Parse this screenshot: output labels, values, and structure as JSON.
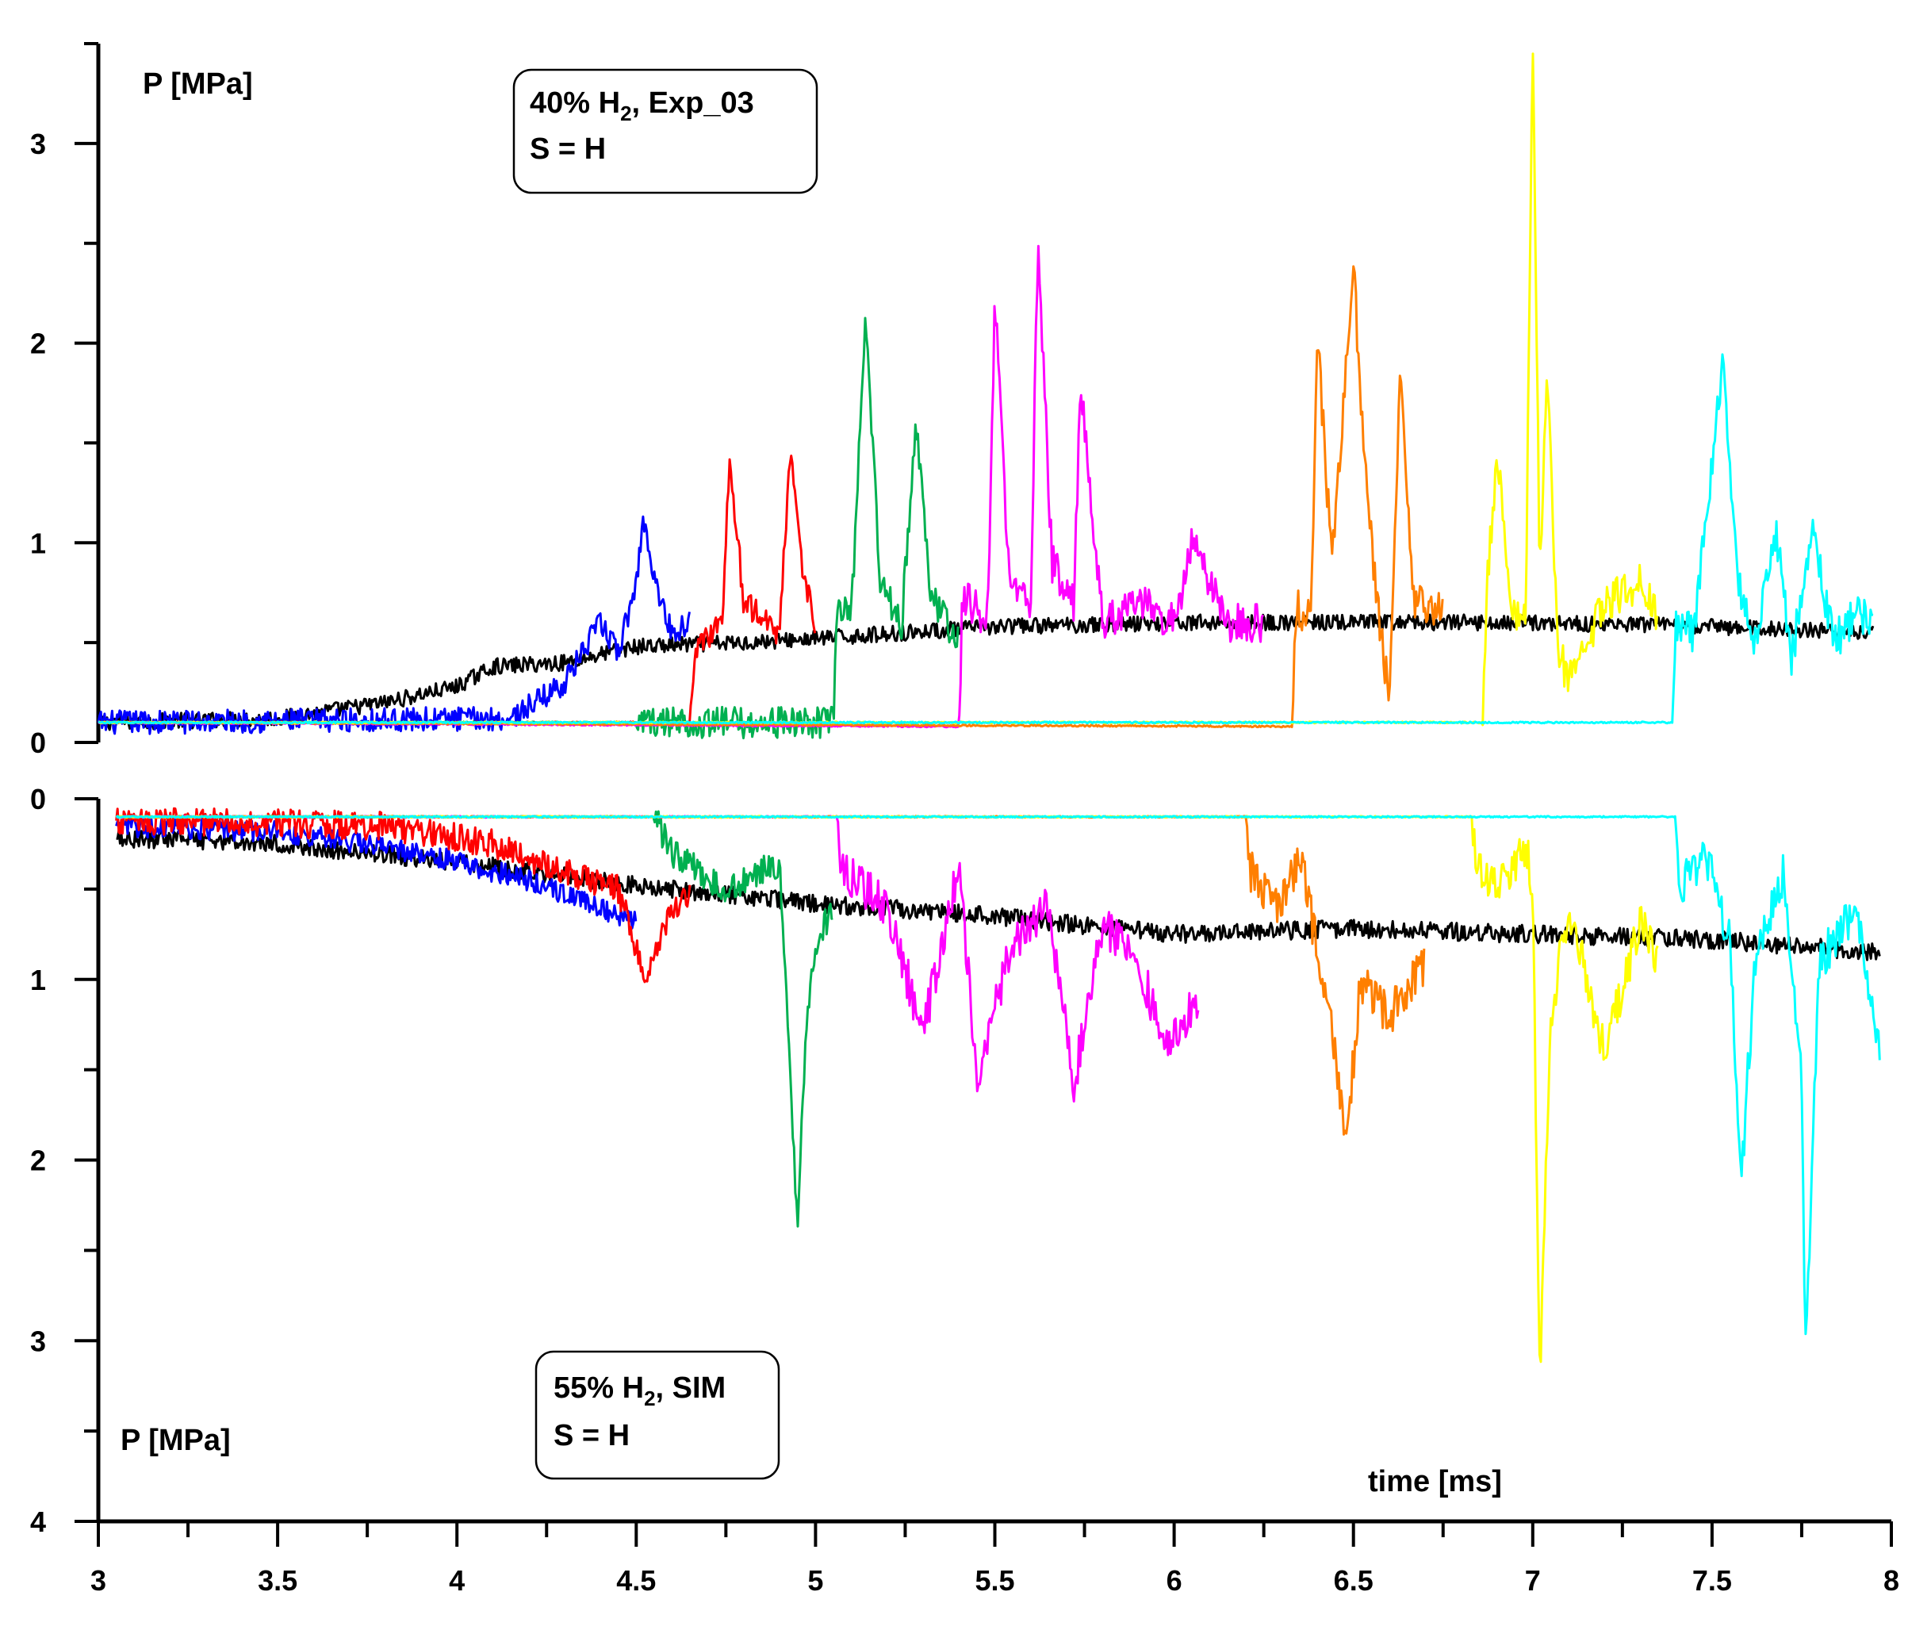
{
  "chart_data": [
    {
      "panel": "top",
      "type": "line",
      "title": "",
      "ylabel": "P [MPa]",
      "xlabel": "",
      "xlim": [
        3,
        8
      ],
      "ylim": [
        0,
        3.5
      ],
      "y_orientation": "normal",
      "y_ticks": [
        0,
        1,
        2,
        3
      ],
      "y_minor_ticks": [
        0.5,
        1.5,
        2.5,
        3.5
      ],
      "legend_box": {
        "line1_prefix": "40% H",
        "line1_sub": "2",
        "line1_suffix": ", Exp_03",
        "line2": "S = H"
      },
      "series": [
        {
          "name": "black",
          "color": "#000000",
          "baseline": 0.1,
          "start": 3.0,
          "end": 7.95,
          "points": [
            [
              3.0,
              0.1
            ],
            [
              3.5,
              0.12
            ],
            [
              3.8,
              0.2
            ],
            [
              4.0,
              0.28
            ],
            [
              4.1,
              0.38
            ],
            [
              4.3,
              0.4
            ],
            [
              4.5,
              0.48
            ],
            [
              4.8,
              0.5
            ],
            [
              5.0,
              0.52
            ],
            [
              5.5,
              0.58
            ],
            [
              6.0,
              0.6
            ],
            [
              6.5,
              0.6
            ],
            [
              7.0,
              0.6
            ],
            [
              7.5,
              0.58
            ],
            [
              7.95,
              0.55
            ]
          ],
          "noise": 0.04
        },
        {
          "name": "blue",
          "color": "#0000ff",
          "baseline": 0.1,
          "start": 3.0,
          "end": 4.65,
          "points": [
            [
              3.0,
              0.1
            ],
            [
              4.15,
              0.12
            ],
            [
              4.3,
              0.3
            ],
            [
              4.4,
              0.6
            ],
            [
              4.45,
              0.45
            ],
            [
              4.5,
              0.8
            ],
            [
              4.52,
              1.12
            ],
            [
              4.56,
              0.75
            ],
            [
              4.6,
              0.55
            ],
            [
              4.65,
              0.6
            ]
          ],
          "noise": 0.06
        },
        {
          "name": "red",
          "color": "#ff0000",
          "baseline": 0.1,
          "start": 3.0,
          "end": 5.0,
          "points": [
            [
              3.0,
              0.1
            ],
            [
              4.65,
              0.1
            ],
            [
              4.67,
              0.5
            ],
            [
              4.74,
              0.6
            ],
            [
              4.76,
              1.42
            ],
            [
              4.8,
              0.7
            ],
            [
              4.9,
              0.55
            ],
            [
              4.93,
              1.5
            ],
            [
              4.96,
              0.9
            ],
            [
              5.0,
              0.6
            ]
          ],
          "noise": 0.07
        },
        {
          "name": "green",
          "color": "#00b050",
          "baseline": 0.1,
          "start": 3.0,
          "end": 5.4,
          "points": [
            [
              3.0,
              0.1
            ],
            [
              4.5,
              0.1
            ],
            [
              5.05,
              0.1
            ],
            [
              5.06,
              0.7
            ],
            [
              5.1,
              0.65
            ],
            [
              5.14,
              2.12
            ],
            [
              5.18,
              0.8
            ],
            [
              5.24,
              0.6
            ],
            [
              5.28,
              1.6
            ],
            [
              5.32,
              0.75
            ],
            [
              5.38,
              0.55
            ]
          ],
          "noise": 0.08
        },
        {
          "name": "magenta",
          "color": "#ff00ff",
          "baseline": 0.08,
          "start": 3.0,
          "end": 6.25,
          "points": [
            [
              3.0,
              0.1
            ],
            [
              5.4,
              0.08
            ],
            [
              5.41,
              0.75
            ],
            [
              5.48,
              0.6
            ],
            [
              5.5,
              2.22
            ],
            [
              5.54,
              0.8
            ],
            [
              5.6,
              0.7
            ],
            [
              5.62,
              2.48
            ],
            [
              5.66,
              0.9
            ],
            [
              5.72,
              0.7
            ],
            [
              5.74,
              1.8
            ],
            [
              5.8,
              0.6
            ],
            [
              5.9,
              0.7
            ],
            [
              6.0,
              0.6
            ],
            [
              6.05,
              1.0
            ],
            [
              6.15,
              0.6
            ],
            [
              6.25,
              0.6
            ]
          ],
          "noise": 0.1
        },
        {
          "name": "orange",
          "color": "#ff7f00",
          "baseline": 0.08,
          "start": 3.0,
          "end": 6.75,
          "points": [
            [
              3.0,
              0.1
            ],
            [
              6.33,
              0.08
            ],
            [
              6.34,
              0.7
            ],
            [
              6.38,
              0.6
            ],
            [
              6.4,
              2.02
            ],
            [
              6.44,
              0.9
            ],
            [
              6.5,
              2.4
            ],
            [
              6.53,
              1.4
            ],
            [
              6.56,
              0.8
            ],
            [
              6.6,
              0.2
            ],
            [
              6.63,
              1.85
            ],
            [
              6.67,
              0.7
            ],
            [
              6.75,
              0.65
            ]
          ],
          "noise": 0.1
        },
        {
          "name": "yellow",
          "color": "#ffff00",
          "baseline": 0.1,
          "start": 3.0,
          "end": 7.35,
          "points": [
            [
              3.0,
              0.1
            ],
            [
              6.86,
              0.1
            ],
            [
              6.87,
              0.7
            ],
            [
              6.9,
              1.45
            ],
            [
              6.94,
              0.7
            ],
            [
              6.98,
              0.6
            ],
            [
              7.0,
              3.5
            ],
            [
              7.02,
              0.8
            ],
            [
              7.04,
              1.85
            ],
            [
              7.07,
              0.5
            ],
            [
              7.1,
              0.3
            ],
            [
              7.2,
              0.7
            ],
            [
              7.3,
              0.8
            ],
            [
              7.35,
              0.6
            ]
          ],
          "noise": 0.1
        },
        {
          "name": "cyan",
          "color": "#00ffff",
          "baseline": 0.1,
          "start": 3.0,
          "end": 7.95,
          "points": [
            [
              3.0,
              0.1
            ],
            [
              7.39,
              0.1
            ],
            [
              7.4,
              0.6
            ],
            [
              7.45,
              0.55
            ],
            [
              7.53,
              1.93
            ],
            [
              7.57,
              0.8
            ],
            [
              7.62,
              0.5
            ],
            [
              7.68,
              1.05
            ],
            [
              7.72,
              0.4
            ],
            [
              7.78,
              1.05
            ],
            [
              7.84,
              0.5
            ],
            [
              7.9,
              0.65
            ],
            [
              7.95,
              0.6
            ]
          ],
          "noise": 0.1
        }
      ]
    },
    {
      "panel": "bottom",
      "type": "line",
      "title": "",
      "ylabel": "P [MPa]",
      "xlabel": "time [ms]",
      "xlim": [
        3,
        8
      ],
      "ylim": [
        0,
        4
      ],
      "y_orientation": "inverted",
      "y_ticks": [
        0,
        1,
        2,
        3,
        4
      ],
      "y_minor_ticks": [
        0.5,
        1.5,
        2.5,
        3.5
      ],
      "x_ticks": [
        3,
        3.5,
        4,
        4.5,
        5,
        5.5,
        6,
        6.5,
        7,
        7.5,
        8
      ],
      "x_minor_ticks": [
        3.25,
        3.75,
        4.25,
        4.75,
        5.25,
        5.75,
        6.25,
        6.75,
        7.25,
        7.75
      ],
      "legend_box": {
        "line1_prefix": "55% H",
        "line1_sub": "2",
        "line1_suffix": ", SIM",
        "line2": "S = H"
      },
      "series": [
        {
          "name": "black",
          "color": "#000000",
          "baseline": 0.1,
          "start": 3.05,
          "end": 7.97,
          "points": [
            [
              3.05,
              0.22
            ],
            [
              3.5,
              0.25
            ],
            [
              4.0,
              0.35
            ],
            [
              4.5,
              0.48
            ],
            [
              5.0,
              0.58
            ],
            [
              5.5,
              0.65
            ],
            [
              6.0,
              0.75
            ],
            [
              6.5,
              0.72
            ],
            [
              7.0,
              0.75
            ],
            [
              7.5,
              0.78
            ],
            [
              7.97,
              0.85
            ]
          ],
          "noise": 0.05
        },
        {
          "name": "blue",
          "color": "#0000ff",
          "baseline": 0.1,
          "start": 3.05,
          "end": 4.5,
          "points": [
            [
              3.05,
              0.15
            ],
            [
              3.5,
              0.18
            ],
            [
              3.9,
              0.3
            ],
            [
              4.2,
              0.45
            ],
            [
              4.5,
              0.68
            ]
          ],
          "noise": 0.06
        },
        {
          "name": "red",
          "color": "#ff0000",
          "baseline": 0.1,
          "start": 3.05,
          "end": 4.65,
          "points": [
            [
              3.05,
              0.12
            ],
            [
              3.8,
              0.15
            ],
            [
              4.1,
              0.25
            ],
            [
              4.3,
              0.4
            ],
            [
              4.45,
              0.5
            ],
            [
              4.53,
              1.02
            ],
            [
              4.58,
              0.7
            ],
            [
              4.65,
              0.5
            ]
          ],
          "noise": 0.08
        },
        {
          "name": "green",
          "color": "#00b050",
          "baseline": 0.1,
          "start": 3.05,
          "end": 5.05,
          "points": [
            [
              3.05,
              0.1
            ],
            [
              4.55,
              0.1
            ],
            [
              4.6,
              0.3
            ],
            [
              4.75,
              0.5
            ],
            [
              4.9,
              0.35
            ],
            [
              4.93,
              1.5
            ],
            [
              4.95,
              2.42
            ],
            [
              4.97,
              1.4
            ],
            [
              5.0,
              0.8
            ],
            [
              5.05,
              0.6
            ]
          ],
          "noise": 0.08
        },
        {
          "name": "magenta",
          "color": "#ff00ff",
          "baseline": 0.1,
          "start": 3.05,
          "end": 6.07,
          "points": [
            [
              3.05,
              0.1
            ],
            [
              5.06,
              0.1
            ],
            [
              5.07,
              0.4
            ],
            [
              5.2,
              0.6
            ],
            [
              5.3,
              1.3
            ],
            [
              5.4,
              0.35
            ],
            [
              5.45,
              1.52
            ],
            [
              5.55,
              0.8
            ],
            [
              5.65,
              0.6
            ],
            [
              5.72,
              1.58
            ],
            [
              5.8,
              0.7
            ],
            [
              5.9,
              0.9
            ],
            [
              5.98,
              1.4
            ],
            [
              6.07,
              1.1
            ]
          ],
          "noise": 0.12
        },
        {
          "name": "orange",
          "color": "#ff7f00",
          "baseline": 0.1,
          "start": 3.05,
          "end": 6.7,
          "points": [
            [
              3.05,
              0.1
            ],
            [
              6.2,
              0.1
            ],
            [
              6.21,
              0.4
            ],
            [
              6.3,
              0.6
            ],
            [
              6.35,
              0.3
            ],
            [
              6.45,
              1.4
            ],
            [
              6.48,
              1.9
            ],
            [
              6.52,
              1.0
            ],
            [
              6.6,
              1.2
            ],
            [
              6.7,
              0.9
            ]
          ],
          "noise": 0.12
        },
        {
          "name": "yellow",
          "color": "#ffff00",
          "baseline": 0.1,
          "start": 3.05,
          "end": 7.35,
          "points": [
            [
              3.05,
              0.1
            ],
            [
              6.83,
              0.1
            ],
            [
              6.84,
              0.35
            ],
            [
              6.9,
              0.5
            ],
            [
              6.98,
              0.25
            ],
            [
              7.0,
              0.5
            ],
            [
              7.02,
              3.25
            ],
            [
              7.05,
              1.2
            ],
            [
              7.1,
              0.6
            ],
            [
              7.2,
              1.4
            ],
            [
              7.3,
              0.7
            ],
            [
              7.35,
              0.9
            ]
          ],
          "noise": 0.12
        },
        {
          "name": "cyan",
          "color": "#00ffff",
          "baseline": 0.1,
          "start": 3.05,
          "end": 7.97,
          "points": [
            [
              3.05,
              0.1
            ],
            [
              7.4,
              0.1
            ],
            [
              7.41,
              0.5
            ],
            [
              7.48,
              0.3
            ],
            [
              7.55,
              0.8
            ],
            [
              7.58,
              2.15
            ],
            [
              7.62,
              0.9
            ],
            [
              7.7,
              0.4
            ],
            [
              7.75,
              1.5
            ],
            [
              7.76,
              3.08
            ],
            [
              7.8,
              0.9
            ],
            [
              7.9,
              0.6
            ],
            [
              7.97,
              1.45
            ]
          ],
          "noise": 0.12
        }
      ]
    }
  ]
}
